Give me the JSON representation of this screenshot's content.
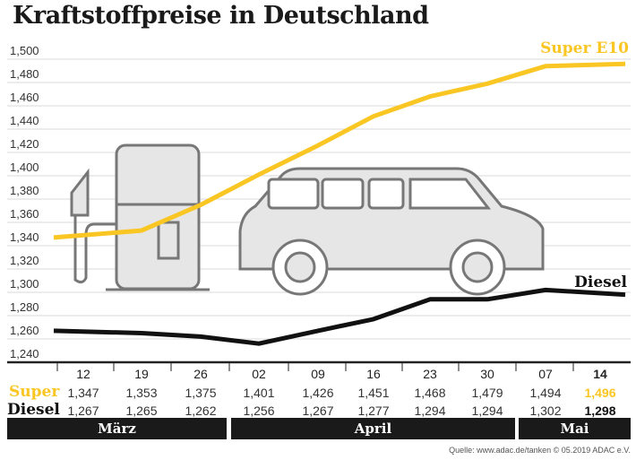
{
  "chart_data": {
    "type": "line",
    "title": "Kraftstoffpreise in Deutschland",
    "categories": [
      "12",
      "19",
      "26",
      "02",
      "09",
      "16",
      "23",
      "30",
      "07",
      "14"
    ],
    "months": [
      {
        "label": "März",
        "span": 3
      },
      {
        "label": "April",
        "span": 5
      },
      {
        "label": "Mai",
        "span": 2
      }
    ],
    "series": [
      {
        "name": "Super E10",
        "row_label": "Super",
        "color": "#f9c623",
        "values": [
          1.347,
          1.353,
          1.375,
          1.401,
          1.426,
          1.451,
          1.468,
          1.479,
          1.494,
          1.496
        ]
      },
      {
        "name": "Diesel",
        "row_label": "Diesel",
        "color": "#111111",
        "values": [
          1.267,
          1.265,
          1.262,
          1.256,
          1.267,
          1.277,
          1.294,
          1.294,
          1.302,
          1.298
        ]
      }
    ],
    "table_values": {
      "super": [
        "1,347",
        "1,353",
        "1,375",
        "1,401",
        "1,426",
        "1,451",
        "1,468",
        "1,479",
        "1,494",
        "1,496"
      ],
      "diesel": [
        "1,267",
        "1,265",
        "1,262",
        "1,256",
        "1,267",
        "1,277",
        "1,294",
        "1,294",
        "1,302",
        "1,298"
      ]
    },
    "yticks": [
      "1,240",
      "1,260",
      "1,280",
      "1,300",
      "1,320",
      "1,340",
      "1,360",
      "1,380",
      "1,400",
      "1,420",
      "1,440",
      "1,460",
      "1,480",
      "1,500"
    ],
    "ylim": [
      1.24,
      1.5
    ],
    "grid": true,
    "source": "Quelle: www.adac.de/tanken  © 05.2019  ADAC e.V."
  }
}
